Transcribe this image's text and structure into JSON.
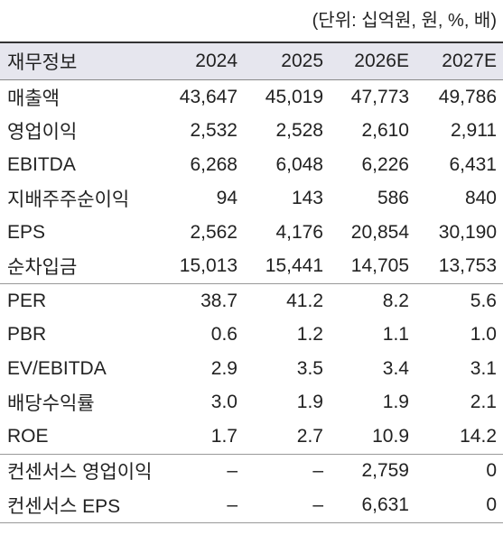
{
  "unit": "(단위: 십억원, 원, %, 배)",
  "table": {
    "header": [
      "재무정보",
      "2024",
      "2025",
      "2026E",
      "2027E"
    ],
    "sections": [
      {
        "rows": [
          [
            "매출액",
            "43,647",
            "45,019",
            "47,773",
            "49,786"
          ],
          [
            "영업이익",
            "2,532",
            "2,528",
            "2,610",
            "2,911"
          ],
          [
            "EBITDA",
            "6,268",
            "6,048",
            "6,226",
            "6,431"
          ],
          [
            "지배주주순이익",
            "94",
            "143",
            "586",
            "840"
          ],
          [
            "EPS",
            "2,562",
            "4,176",
            "20,854",
            "30,190"
          ],
          [
            "순차입금",
            "15,013",
            "15,441",
            "14,705",
            "13,753"
          ]
        ]
      },
      {
        "rows": [
          [
            "PER",
            "38.7",
            "41.2",
            "8.2",
            "5.6"
          ],
          [
            "PBR",
            "0.6",
            "1.2",
            "1.1",
            "1.0"
          ],
          [
            "EV/EBITDA",
            "2.9",
            "3.5",
            "3.4",
            "3.1"
          ],
          [
            "배당수익률",
            "3.0",
            "1.9",
            "1.9",
            "2.1"
          ],
          [
            "ROE",
            "1.7",
            "2.7",
            "10.9",
            "14.2"
          ]
        ]
      },
      {
        "rows": [
          [
            "컨센서스 영업이익",
            "–",
            "–",
            "2,759",
            "0"
          ],
          [
            "컨센서스 EPS",
            "–",
            "–",
            "6,631",
            "0"
          ]
        ]
      }
    ]
  }
}
